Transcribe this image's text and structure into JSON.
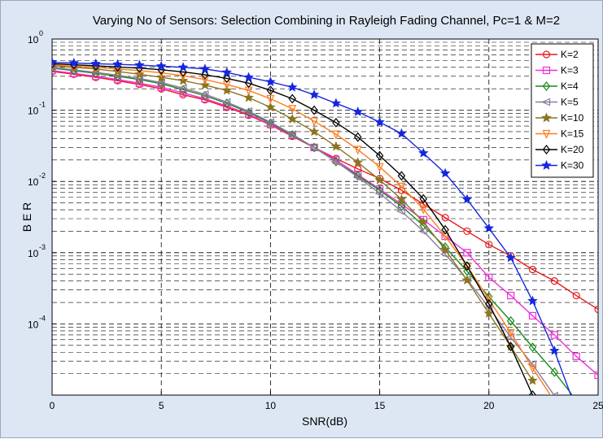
{
  "chart_data": {
    "type": "line",
    "title": "Varying No of Sensors: Selection Combining in Rayleigh Fading Channel, Pc=1 & M=2",
    "xlabel": "SNR(dB)",
    "ylabel": "B E R",
    "x": [
      0,
      1,
      2,
      3,
      4,
      5,
      6,
      7,
      8,
      9,
      10,
      11,
      12,
      13,
      14,
      15,
      16,
      17,
      18,
      19,
      20,
      21,
      22,
      23,
      24,
      25
    ],
    "xlim": [
      0,
      25
    ],
    "ylim_log10": [
      -5,
      0
    ],
    "yscale": "log",
    "grid": true,
    "legend_position": "top-right",
    "xticks": [
      "0",
      "5",
      "10",
      "15",
      "20",
      "25"
    ],
    "yticks": [
      {
        "base": "10",
        "exp": "-4"
      },
      {
        "base": "10",
        "exp": "-3"
      },
      {
        "base": "10",
        "exp": "-2"
      },
      {
        "base": "10",
        "exp": "-1"
      },
      {
        "base": "10",
        "exp": "0"
      }
    ],
    "series": [
      {
        "name": "K=2",
        "color": "#e8191b",
        "marker": "circle",
        "values": [
          0.35,
          0.32,
          0.29,
          0.26,
          0.23,
          0.2,
          0.165,
          0.14,
          0.11,
          0.085,
          0.062,
          0.043,
          0.03,
          0.021,
          0.015,
          0.011,
          0.0075,
          0.0048,
          0.0031,
          0.002,
          0.0013,
          0.0009,
          0.00058,
          0.0004,
          0.00025,
          0.00016
        ]
      },
      {
        "name": "K=3",
        "color": "#ef2fd9",
        "marker": "square",
        "values": [
          0.36,
          0.33,
          0.3,
          0.27,
          0.24,
          0.21,
          0.175,
          0.145,
          0.115,
          0.088,
          0.063,
          0.044,
          0.03,
          0.02,
          0.0125,
          0.0078,
          0.0048,
          0.0029,
          0.0017,
          0.001,
          0.00045,
          0.00025,
          0.00013,
          7e-05,
          3.5e-05,
          1.9e-05
        ]
      },
      {
        "name": "K=4",
        "color": "#1b8a1b",
        "marker": "diamond",
        "values": [
          0.39,
          0.36,
          0.33,
          0.3,
          0.27,
          0.235,
          0.195,
          0.16,
          0.125,
          0.093,
          0.066,
          0.045,
          0.03,
          0.019,
          0.012,
          0.0075,
          0.0045,
          0.0024,
          0.0012,
          0.00055,
          0.00024,
          0.00011,
          4.7e-05,
          2.1e-05,
          8.5e-06,
          null
        ]
      },
      {
        "name": "K=5",
        "color": "#8c7ba0",
        "marker": "triangle-left",
        "values": [
          0.4,
          0.37,
          0.34,
          0.31,
          0.28,
          0.245,
          0.205,
          0.168,
          0.13,
          0.097,
          0.068,
          0.046,
          0.03,
          0.019,
          0.0115,
          0.0068,
          0.0038,
          0.002,
          0.00095,
          0.00042,
          0.00017,
          6.5e-05,
          2.7e-05,
          9.8e-06,
          null,
          null
        ]
      },
      {
        "name": "K=10",
        "color": "#8b7521",
        "marker": "star",
        "values": [
          0.42,
          0.4,
          0.38,
          0.35,
          0.32,
          0.29,
          0.26,
          0.225,
          0.19,
          0.15,
          0.11,
          0.075,
          0.05,
          0.031,
          0.0185,
          0.0105,
          0.0056,
          0.0027,
          0.0011,
          0.00041,
          0.00014,
          4.8e-05,
          1.6e-05,
          null,
          null,
          null
        ]
      },
      {
        "name": "K=15",
        "color": "#ff7b1c",
        "marker": "triangle-down",
        "values": [
          0.43,
          0.415,
          0.4,
          0.38,
          0.36,
          0.335,
          0.305,
          0.27,
          0.23,
          0.19,
          0.145,
          0.105,
          0.07,
          0.046,
          0.028,
          0.016,
          0.0085,
          0.0041,
          0.0017,
          0.00065,
          0.00022,
          7.5e-05,
          2.4e-05,
          8.2e-06,
          null,
          null
        ]
      },
      {
        "name": "K=20",
        "color": "#000000",
        "marker": "diamond",
        "values": [
          0.45,
          0.435,
          0.42,
          0.405,
          0.39,
          0.37,
          0.345,
          0.315,
          0.28,
          0.24,
          0.19,
          0.145,
          0.1,
          0.067,
          0.042,
          0.023,
          0.012,
          0.0057,
          0.0021,
          0.00065,
          0.00019,
          4.8e-05,
          1e-05,
          null,
          null,
          null
        ]
      },
      {
        "name": "K=30",
        "color": "#1626e0",
        "marker": "star",
        "values": [
          0.47,
          0.46,
          0.45,
          0.44,
          0.43,
          0.415,
          0.4,
          0.38,
          0.34,
          0.29,
          0.25,
          0.21,
          0.165,
          0.125,
          0.095,
          0.068,
          0.047,
          0.025,
          0.013,
          0.0056,
          0.0022,
          0.00085,
          0.00021,
          4.2e-05,
          6.2e-06,
          null
        ]
      }
    ]
  }
}
